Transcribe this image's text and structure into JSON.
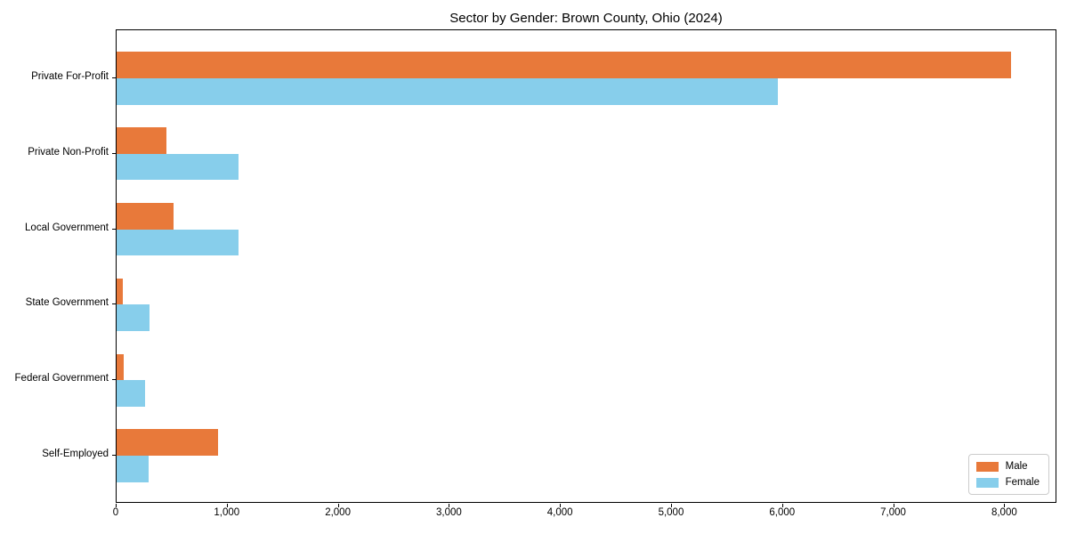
{
  "chart_data": {
    "type": "bar",
    "orientation": "horizontal",
    "title": "Sector by Gender: Brown County, Ohio (2024)",
    "categories": [
      "Private For-Profit",
      "Private Non-Profit",
      "Local Government",
      "State Government",
      "Federal Government",
      "Self-Employed"
    ],
    "series": [
      {
        "name": "Male",
        "color": "#E8793A",
        "values": [
          8050,
          450,
          510,
          60,
          65,
          910
        ]
      },
      {
        "name": "Female",
        "color": "#87CEEB",
        "values": [
          5950,
          1100,
          1100,
          300,
          260,
          290
        ]
      }
    ],
    "xlabel": "",
    "ylabel": "",
    "xlim": [
      0,
      8470
    ],
    "xticks": {
      "values": [
        0,
        1000,
        2000,
        3000,
        4000,
        5000,
        6000,
        7000,
        8000
      ],
      "labels": [
        "0",
        "1,000",
        "2,000",
        "3,000",
        "4,000",
        "5,000",
        "6,000",
        "7,000",
        "8,000"
      ]
    },
    "grid": false,
    "legend": {
      "position": "lower right"
    }
  }
}
